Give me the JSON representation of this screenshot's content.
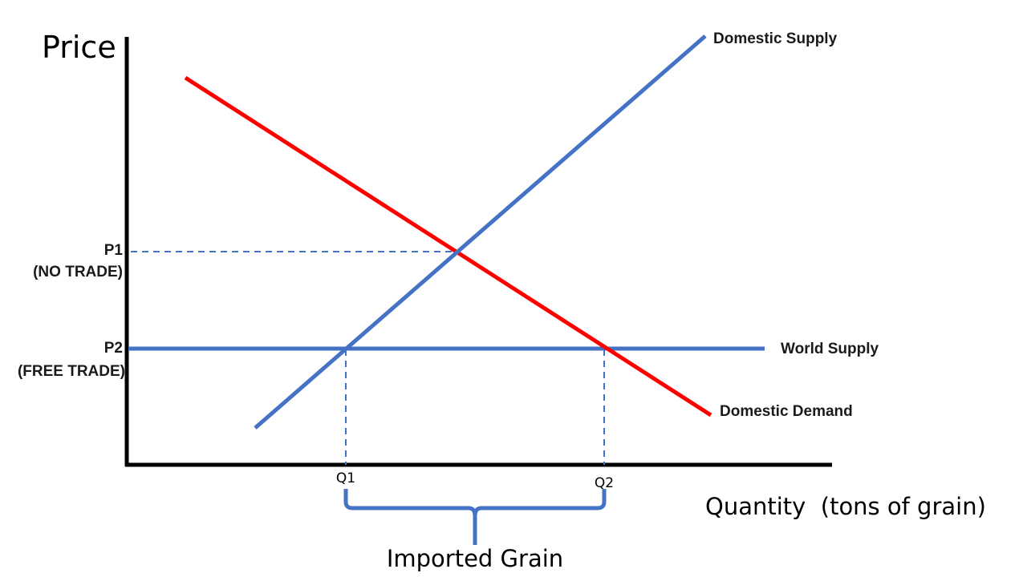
{
  "axes": {
    "y_label": "Price",
    "x_label": "Quantity  (tons of grain)"
  },
  "price_levels": {
    "p1": {
      "label": "P1",
      "note": "(NO TRADE)"
    },
    "p2": {
      "label": "P2",
      "note": "(FREE TRADE)"
    }
  },
  "quantity_levels": {
    "q1": "Q1",
    "q2": "Q2"
  },
  "curves": {
    "domestic_supply": {
      "label": "Domestic Supply",
      "color": "#4472c4"
    },
    "domestic_demand": {
      "label": "Domestic Demand",
      "color": "#ff0000"
    },
    "world_supply": {
      "label": "World Supply",
      "color": "#4472c4"
    }
  },
  "bracket": {
    "label": "Imported Grain",
    "color": "#4472c4"
  },
  "colors": {
    "axis": "#000000",
    "guide": "#4472c4"
  }
}
